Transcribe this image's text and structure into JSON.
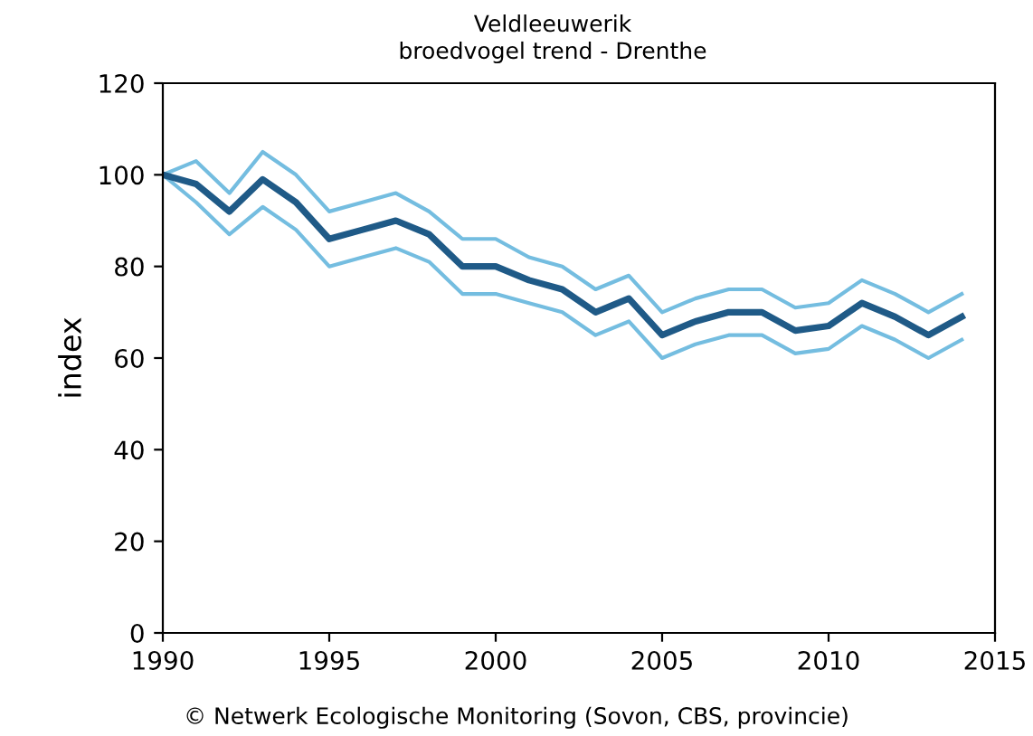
{
  "chart_data": {
    "type": "line",
    "title": "Veldleeuwerik\nbroedvogel trend - Drenthe",
    "ylabel": "index",
    "x": [
      1990,
      1991,
      1992,
      1993,
      1994,
      1995,
      1996,
      1997,
      1998,
      1999,
      2000,
      2001,
      2002,
      2003,
      2004,
      2005,
      2006,
      2007,
      2008,
      2009,
      2010,
      2011,
      2012,
      2013,
      2014
    ],
    "series": [
      {
        "color": "#74bde0",
        "values": [
          100,
          103,
          96,
          105,
          100,
          92,
          94,
          96,
          92,
          86,
          86,
          82,
          80,
          75,
          78,
          70,
          73,
          75,
          75,
          71,
          72,
          77,
          74,
          70,
          74
        ]
      },
      {
        "color": "#74bde0",
        "values": [
          100,
          94,
          87,
          93,
          88,
          80,
          82,
          84,
          81,
          74,
          74,
          72,
          70,
          65,
          68,
          60,
          63,
          65,
          65,
          61,
          62,
          67,
          64,
          60,
          64
        ]
      },
      {
        "color": "#1f5a87",
        "values": [
          100,
          98,
          92,
          99,
          94,
          86,
          88,
          90,
          87,
          80,
          80,
          77,
          75,
          70,
          73,
          65,
          68,
          70,
          70,
          66,
          67,
          72,
          69,
          65,
          69
        ]
      }
    ],
    "xlim": [
      1990,
      2015
    ],
    "xticks": [
      1990,
      1995,
      2000,
      2005,
      2010,
      2015
    ],
    "ylim": [
      0,
      120
    ],
    "yticks": [
      0,
      20,
      40,
      60,
      80,
      100,
      120
    ],
    "annotations": [
      "© Netwerk Ecologische Monitoring (Sovon, CBS, provincie)"
    ]
  }
}
